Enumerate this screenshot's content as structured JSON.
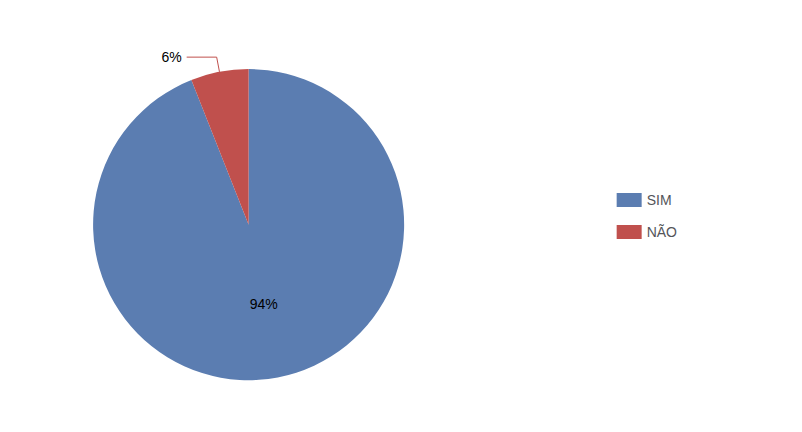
{
  "chart_data": {
    "type": "pie",
    "categories": [
      "SIM",
      "NÃO"
    ],
    "values": [
      94,
      6
    ],
    "value_labels": [
      "94%",
      "6%"
    ],
    "colors": [
      "#5B7DB1",
      "#C0504D"
    ],
    "data_labels": true,
    "legend": "right"
  }
}
